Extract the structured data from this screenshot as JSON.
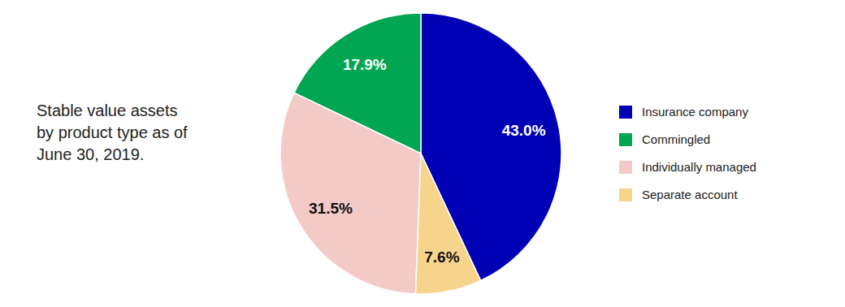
{
  "chart_data": {
    "type": "pie",
    "title": "Stable value assets\nby product type as of\nJune 30, 2019.",
    "categories": [
      "Insurance company",
      "Commingled",
      "Individually managed",
      "Separate account"
    ],
    "values": [
      43.0,
      17.9,
      31.5,
      7.6
    ],
    "value_labels": [
      "43.0%",
      "17.9%",
      "31.5%",
      "7.6%"
    ],
    "colors": [
      "#0000b4",
      "#00a651",
      "#f4cac6",
      "#f7d48c"
    ],
    "data_labels": true,
    "legend": "right"
  }
}
